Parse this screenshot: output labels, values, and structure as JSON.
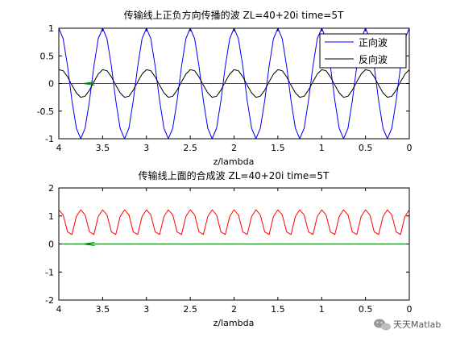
{
  "chart_data": [
    {
      "type": "line",
      "title": "传输线上正负方向传播的波  ZL=40+20i  time=5T",
      "xlabel": "z/lambda",
      "ylabel": "",
      "xlim": [
        4,
        0
      ],
      "ylim": [
        -1,
        1
      ],
      "x_ticks": [
        "4",
        "3.5",
        "3",
        "2.5",
        "2",
        "1.5",
        "1",
        "0.5",
        "0"
      ],
      "y_ticks": [
        "1",
        "0.5",
        "0",
        "-0.5",
        "-1"
      ],
      "grid": false,
      "legend_position": "top-right",
      "series": [
        {
          "name": "正向波",
          "color": "#0000ff",
          "x": [
            4.0,
            3.95,
            3.9,
            3.85,
            3.8,
            3.75,
            3.7,
            3.65,
            3.6,
            3.55,
            3.5,
            3.45,
            3.4,
            3.35,
            3.3,
            3.25,
            3.2,
            3.15,
            3.1,
            3.05,
            3.0,
            2.95,
            2.9,
            2.85,
            2.8,
            2.75,
            2.7,
            2.65,
            2.6,
            2.55,
            2.5,
            2.45,
            2.4,
            2.35,
            2.3,
            2.25,
            2.2,
            2.15,
            2.1,
            2.05,
            2.0,
            1.95,
            1.9,
            1.85,
            1.8,
            1.75,
            1.7,
            1.65,
            1.6,
            1.55,
            1.5,
            1.45,
            1.4,
            1.35,
            1.3,
            1.25,
            1.2,
            1.15,
            1.1,
            1.05,
            1.0,
            0.95,
            0.9,
            0.85,
            0.8,
            0.75,
            0.7,
            0.65,
            0.6,
            0.55,
            0.5,
            0.45,
            0.4,
            0.35,
            0.3,
            0.25,
            0.2,
            0.15,
            0.1,
            0.05,
            0.0
          ],
          "values": [
            1.0,
            0.81,
            0.31,
            -0.31,
            -0.81,
            -1.0,
            -0.81,
            -0.31,
            0.31,
            0.81,
            1.0,
            0.81,
            0.31,
            -0.31,
            -0.81,
            -1.0,
            -0.81,
            -0.31,
            0.31,
            0.81,
            1.0,
            0.81,
            0.31,
            -0.31,
            -0.81,
            -1.0,
            -0.81,
            -0.31,
            0.31,
            0.81,
            1.0,
            0.81,
            0.31,
            -0.31,
            -0.81,
            -1.0,
            -0.81,
            -0.31,
            0.31,
            0.81,
            1.0,
            0.81,
            0.31,
            -0.31,
            -0.81,
            -1.0,
            -0.81,
            -0.31,
            0.31,
            0.81,
            1.0,
            0.81,
            0.31,
            -0.31,
            -0.81,
            -1.0,
            -0.81,
            -0.31,
            0.31,
            0.81,
            1.0,
            0.81,
            0.31,
            -0.31,
            -0.81,
            -1.0,
            -0.81,
            -0.31,
            0.31,
            0.81,
            1.0,
            0.81,
            0.31,
            -0.31,
            -0.81,
            -1.0,
            -0.81,
            -0.31,
            0.31,
            0.81,
            1.0
          ]
        },
        {
          "name": "反向波",
          "color": "#000000",
          "x": [
            4.0,
            3.95,
            3.9,
            3.85,
            3.8,
            3.75,
            3.7,
            3.65,
            3.6,
            3.55,
            3.5,
            3.45,
            3.4,
            3.35,
            3.3,
            3.25,
            3.2,
            3.15,
            3.1,
            3.05,
            3.0,
            2.95,
            2.9,
            2.85,
            2.8,
            2.75,
            2.7,
            2.65,
            2.6,
            2.55,
            2.5,
            2.45,
            2.4,
            2.35,
            2.3,
            2.25,
            2.2,
            2.15,
            2.1,
            2.05,
            2.0,
            1.95,
            1.9,
            1.85,
            1.8,
            1.75,
            1.7,
            1.65,
            1.6,
            1.55,
            1.5,
            1.45,
            1.4,
            1.35,
            1.3,
            1.25,
            1.2,
            1.15,
            1.1,
            1.05,
            1.0,
            0.95,
            0.9,
            0.85,
            0.8,
            0.75,
            0.7,
            0.65,
            0.6,
            0.55,
            0.5,
            0.45,
            0.4,
            0.35,
            0.3,
            0.25,
            0.2,
            0.15,
            0.1,
            0.05,
            0.0
          ],
          "values": [
            0.25,
            0.23,
            0.12,
            -0.03,
            -0.17,
            -0.25,
            -0.23,
            -0.12,
            0.03,
            0.17,
            0.25,
            0.23,
            0.12,
            -0.03,
            -0.17,
            -0.25,
            -0.23,
            -0.12,
            0.03,
            0.17,
            0.25,
            0.23,
            0.12,
            -0.03,
            -0.17,
            -0.25,
            -0.23,
            -0.12,
            0.03,
            0.17,
            0.25,
            0.23,
            0.12,
            -0.03,
            -0.17,
            -0.25,
            -0.23,
            -0.12,
            0.03,
            0.17,
            0.25,
            0.23,
            0.12,
            -0.03,
            -0.17,
            -0.25,
            -0.23,
            -0.12,
            0.03,
            0.17,
            0.25,
            0.23,
            0.12,
            -0.03,
            -0.17,
            -0.25,
            -0.23,
            -0.12,
            0.03,
            0.17,
            0.25,
            0.23,
            0.12,
            -0.03,
            -0.17,
            -0.25,
            -0.23,
            -0.12,
            0.03,
            0.17,
            0.25,
            0.23,
            0.12,
            -0.03,
            -0.17,
            -0.25,
            -0.23,
            -0.12,
            0.03,
            0.17,
            0.25
          ]
        },
        {
          "color": "#008000",
          "x": [
            4.0,
            0.0
          ],
          "values": [
            0.0,
            0.0
          ]
        }
      ]
    },
    {
      "type": "line",
      "title": "传输线上面的合成波  ZL=40+20i  time=5T",
      "xlabel": "z/lambda",
      "ylabel": "",
      "xlim": [
        4,
        0
      ],
      "ylim": [
        -2,
        2
      ],
      "x_ticks": [
        "4",
        "3.5",
        "3",
        "2.5",
        "2",
        "1.5",
        "1",
        "0.5",
        "0"
      ],
      "y_ticks": [
        "2",
        "1",
        "0",
        "-1",
        "-2"
      ],
      "grid": false,
      "series": [
        {
          "color": "#ff0000",
          "x": [
            4.0,
            3.95,
            3.9,
            3.85,
            3.8,
            3.75,
            3.7,
            3.65,
            3.6,
            3.55,
            3.5,
            3.45,
            3.4,
            3.35,
            3.3,
            3.25,
            3.2,
            3.15,
            3.1,
            3.05,
            3.0,
            2.95,
            2.9,
            2.85,
            2.8,
            2.75,
            2.7,
            2.65,
            2.6,
            2.55,
            2.5,
            2.45,
            2.4,
            2.35,
            2.3,
            2.25,
            2.2,
            2.15,
            2.1,
            2.05,
            2.0,
            1.95,
            1.9,
            1.85,
            1.8,
            1.75,
            1.7,
            1.65,
            1.6,
            1.55,
            1.5,
            1.45,
            1.4,
            1.35,
            1.3,
            1.25,
            1.2,
            1.15,
            1.1,
            1.05,
            1.0,
            0.95,
            0.9,
            0.85,
            0.8,
            0.75,
            0.7,
            0.65,
            0.6,
            0.55,
            0.5,
            0.45,
            0.4,
            0.35,
            0.3,
            0.25,
            0.2,
            0.15,
            0.1,
            0.05,
            0.0
          ],
          "values": [
            1.22,
            1.04,
            0.43,
            0.34,
            0.98,
            1.22,
            1.04,
            0.43,
            0.34,
            0.98,
            1.22,
            1.04,
            0.43,
            0.34,
            0.98,
            1.22,
            1.04,
            0.43,
            0.34,
            0.98,
            1.22,
            1.04,
            0.43,
            0.34,
            0.98,
            1.22,
            1.04,
            0.43,
            0.34,
            0.98,
            1.22,
            1.04,
            0.43,
            0.34,
            0.98,
            1.22,
            1.04,
            0.43,
            0.34,
            0.98,
            1.22,
            1.04,
            0.43,
            0.34,
            0.98,
            1.22,
            1.04,
            0.43,
            0.34,
            0.98,
            1.22,
            1.04,
            0.43,
            0.34,
            0.98,
            1.22,
            1.04,
            0.43,
            0.34,
            0.98,
            1.22,
            1.04,
            0.43,
            0.34,
            0.98,
            1.22,
            1.04,
            0.43,
            0.34,
            0.98,
            1.22,
            1.04,
            0.43,
            0.34,
            0.98,
            1.22,
            1.04,
            0.43,
            0.34,
            0.98,
            1.22
          ]
        },
        {
          "color": "#008000",
          "x": [
            4.0,
            0.0
          ],
          "values": [
            0.0,
            0.0
          ]
        }
      ]
    }
  ],
  "watermark": {
    "text": "天天Matlab",
    "icon": "wechat-icon"
  }
}
